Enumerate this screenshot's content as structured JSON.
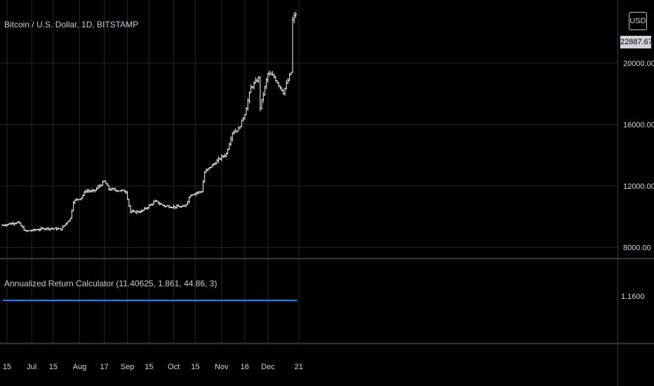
{
  "header": {
    "symbol_title": "Bitcoin / U.S. Dollar, 1D, BITSTAMP",
    "currency": "USD",
    "last_price_label": "22887.67"
  },
  "indicator": {
    "title": "Annualized Return Calculator (11.40625, 1.861, 44.86, 3)",
    "value_label": "1.1600",
    "value": 1.16,
    "line_color": "#2e7fd9"
  },
  "colors": {
    "background": "#000000",
    "candle": "#ffffff",
    "grid": "#262626",
    "axis_text": "#d1d4dc"
  },
  "chart_data": {
    "type": "candlestick",
    "title": "Bitcoin / U.S. Dollar, 1D, BITSTAMP",
    "y_axis": {
      "ticks": [
        8000,
        12000,
        16000,
        20000
      ],
      "tick_labels": [
        "8000.00",
        "12000.00",
        "16000.00",
        "20000.00"
      ],
      "ylim": [
        7300,
        24100
      ],
      "position": "right"
    },
    "x_axis": {
      "tick_labels": [
        "15",
        "Jul",
        "15",
        "Aug",
        "17",
        "Sep",
        "15",
        "Oct",
        "15",
        "Nov",
        "16",
        "Dec",
        "21"
      ],
      "tick_dates": [
        "2020-06-15",
        "2020-07-01",
        "2020-07-15",
        "2020-08-01",
        "2020-08-17",
        "2020-09-01",
        "2020-09-15",
        "2020-10-01",
        "2020-10-15",
        "2020-11-01",
        "2020-11-16",
        "2020-12-01",
        "2020-12-21"
      ]
    },
    "series": [
      {
        "kind": "close_keypoints",
        "note_points": [
          [
            "2020-06-12",
            9450
          ],
          [
            "2020-06-22",
            9650
          ],
          [
            "2020-06-27",
            9050
          ],
          [
            "2020-07-10",
            9250
          ],
          [
            "2020-07-20",
            9200
          ],
          [
            "2020-07-26",
            9900
          ],
          [
            "2020-07-28",
            11000
          ],
          [
            "2020-08-02",
            11250
          ],
          [
            "2020-08-05",
            11700
          ],
          [
            "2020-08-10",
            11650
          ],
          [
            "2020-08-17",
            12300
          ],
          [
            "2020-08-20",
            11800
          ],
          [
            "2020-08-31",
            11650
          ],
          [
            "2020-09-03",
            10300
          ],
          [
            "2020-09-10",
            10350
          ],
          [
            "2020-09-19",
            11000
          ],
          [
            "2020-09-25",
            10700
          ],
          [
            "2020-10-01",
            10650
          ],
          [
            "2020-10-08",
            10650
          ],
          [
            "2020-10-12",
            11450
          ],
          [
            "2020-10-19",
            11650
          ],
          [
            "2020-10-21",
            12900
          ],
          [
            "2020-10-31",
            13800
          ],
          [
            "2020-11-04",
            14100
          ],
          [
            "2020-11-08",
            15500
          ],
          [
            "2020-11-12",
            15700
          ],
          [
            "2020-11-16",
            16700
          ],
          [
            "2020-11-20",
            18400
          ],
          [
            "2020-11-25",
            19000
          ],
          [
            "2020-11-26",
            17100
          ],
          [
            "2020-12-01",
            19300
          ],
          [
            "2020-12-05",
            19100
          ],
          [
            "2020-12-11",
            18100
          ],
          [
            "2020-12-16",
            19400
          ],
          [
            "2020-12-17",
            22800
          ],
          [
            "2020-12-19",
            23200
          ]
        ]
      }
    ],
    "indicator_series": {
      "name": "Annualized Return Calculator (11.40625, 1.861, 44.86, 3)",
      "value": 1.16,
      "y_tick_labels": [
        "1.1600"
      ]
    }
  }
}
